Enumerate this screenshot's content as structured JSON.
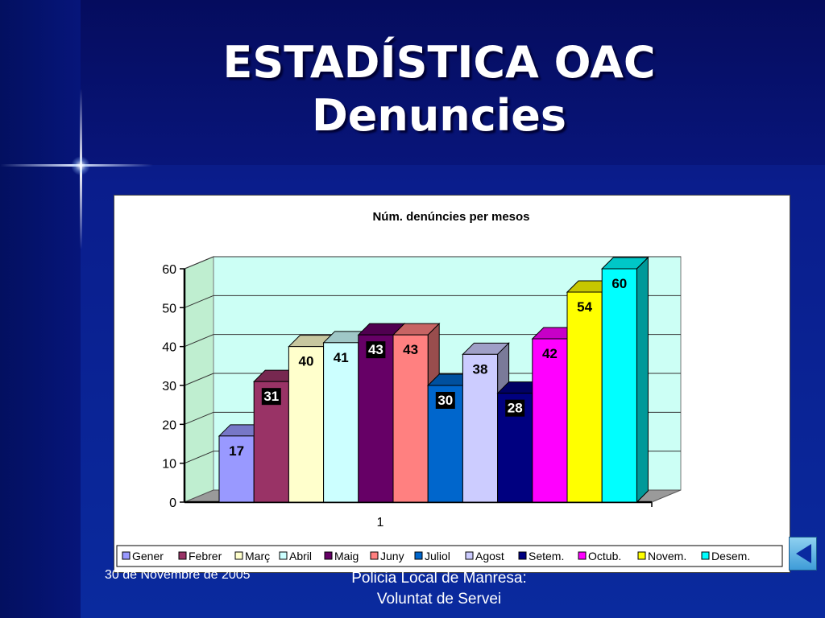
{
  "slide": {
    "title_line1": "ESTADÍSTICA OAC",
    "title_line2": "Denuncies",
    "footer_date": "30 de Novembre de 2005",
    "footer_line1": "Policia Local de Manresa:",
    "footer_line2": "Voluntat de Servei"
  },
  "chart_data": {
    "type": "bar",
    "title": "Núm. denúncies per mesos",
    "categories": [
      "1"
    ],
    "xlabel": "",
    "ylabel": "",
    "ylim": [
      0,
      60
    ],
    "yticks": [
      "0",
      "10",
      "20",
      "30",
      "40",
      "50",
      "60"
    ],
    "grid": true,
    "legend_position": "bottom",
    "series": [
      {
        "name": "Gener",
        "values": [
          17
        ],
        "color": "#9999ff"
      },
      {
        "name": "Febrer",
        "values": [
          31
        ],
        "color": "#993366"
      },
      {
        "name": "Març",
        "values": [
          40
        ],
        "color": "#ffffcc"
      },
      {
        "name": "Abril",
        "values": [
          41
        ],
        "color": "#ccffff"
      },
      {
        "name": "Maig",
        "values": [
          43
        ],
        "color": "#660066"
      },
      {
        "name": "Juny",
        "values": [
          43
        ],
        "color": "#ff8080"
      },
      {
        "name": "Juliol",
        "values": [
          30
        ],
        "color": "#0066cc"
      },
      {
        "name": "Agost",
        "values": [
          38
        ],
        "color": "#ccccff"
      },
      {
        "name": "Setem.",
        "values": [
          28
        ],
        "color": "#000080"
      },
      {
        "name": "Octub.",
        "values": [
          42
        ],
        "color": "#ff00ff"
      },
      {
        "name": "Novem.",
        "values": [
          54
        ],
        "color": "#ffff00"
      },
      {
        "name": "Desem.",
        "values": [
          60
        ],
        "color": "#00ffff"
      }
    ]
  }
}
